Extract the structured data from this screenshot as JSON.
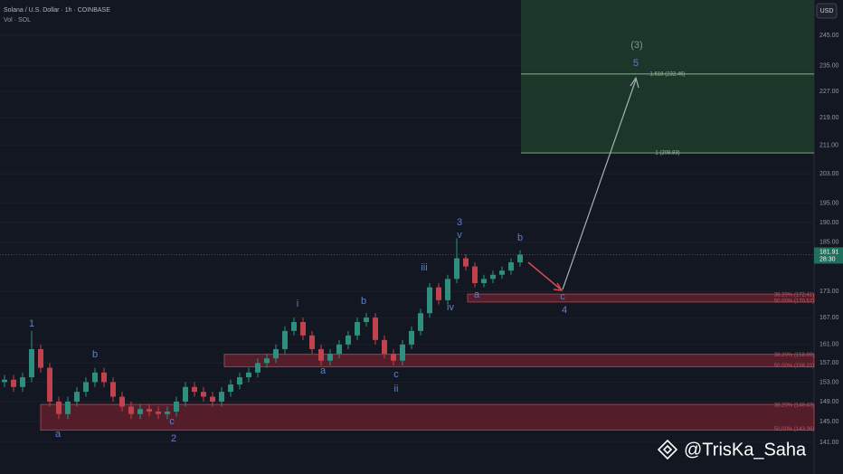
{
  "chart_data": {
    "type": "candlestick",
    "title": "Solana / U.S. Dollar · 1h · COINBASE",
    "subtitle": "Vol · SOL",
    "currency": "USD",
    "log_scale": true,
    "up_color": "#2f8f7f",
    "down_color": "#c0424c",
    "open": [
      153,
      153.5,
      152,
      154,
      160,
      156,
      149,
      146.5,
      149,
      151,
      153,
      155,
      153,
      150,
      148,
      146.5,
      147.5,
      147,
      146.5,
      147,
      149,
      152,
      151,
      150,
      149,
      151,
      152.5,
      154,
      155,
      157,
      158,
      160,
      164,
      166,
      163,
      160,
      157.5,
      159,
      161,
      163,
      166,
      167,
      162,
      159,
      157.5,
      161,
      164,
      168,
      174,
      171,
      176,
      181,
      179,
      175,
      176,
      177,
      178,
      180
    ],
    "high": [
      154.5,
      154.5,
      155,
      164,
      161,
      157,
      150,
      150,
      152,
      154,
      156,
      156,
      154,
      151,
      149,
      148.5,
      148.5,
      148,
      148,
      150,
      153,
      153,
      152,
      151,
      152,
      153.5,
      155,
      156,
      158,
      159,
      161,
      165,
      167,
      167,
      164,
      161,
      160,
      162,
      164,
      167,
      168,
      168,
      163,
      160,
      162,
      165,
      169,
      175,
      175,
      177,
      186,
      182,
      180,
      177,
      178,
      179,
      181,
      183
    ],
    "low": [
      152,
      151,
      151,
      153,
      155,
      148,
      145.5,
      145.5,
      148,
      150,
      152,
      152,
      149,
      147,
      145.5,
      145.5,
      146,
      145.5,
      145.5,
      146,
      148,
      150,
      149,
      148,
      148,
      150,
      151.5,
      153,
      154,
      156,
      157,
      159,
      163,
      162,
      159,
      156.5,
      156.5,
      158,
      160,
      162,
      165,
      161,
      158,
      156.5,
      156.5,
      160,
      163,
      167,
      170,
      170,
      175,
      178,
      174,
      174,
      175,
      176,
      177,
      179
    ],
    "close": [
      153.5,
      152,
      154,
      160,
      156,
      149,
      146.5,
      149,
      151,
      153,
      155,
      153,
      150,
      148,
      146.5,
      147.5,
      147,
      146.5,
      147,
      149,
      152,
      151,
      150,
      149,
      151,
      152.5,
      154,
      155,
      157,
      158,
      160,
      164,
      166,
      163,
      160,
      157.5,
      159,
      161,
      163,
      166,
      167,
      162,
      159,
      157.5,
      161,
      164,
      168,
      174,
      171,
      176,
      181,
      179,
      175,
      176,
      177,
      178,
      180,
      181.91
    ],
    "ylim": [
      137.4,
      257
    ],
    "yticks": [
      {
        "value": 245,
        "label": "245.00"
      },
      {
        "value": 235,
        "label": "235.00"
      },
      {
        "value": 227,
        "label": "227.00"
      },
      {
        "value": 219,
        "label": "219.00"
      },
      {
        "value": 211,
        "label": "211.00"
      },
      {
        "value": 203,
        "label": "203.00"
      },
      {
        "value": 195,
        "label": "195.00"
      },
      {
        "value": 190,
        "label": "190.00"
      },
      {
        "value": 185,
        "label": "185.00"
      },
      {
        "value": 173,
        "label": "173.00"
      },
      {
        "value": 167,
        "label": "167.00"
      },
      {
        "value": 161,
        "label": "161.00"
      },
      {
        "value": 157,
        "label": "157.00"
      },
      {
        "value": 153,
        "label": "153.00"
      },
      {
        "value": 149,
        "label": "149.00"
      },
      {
        "value": 145,
        "label": "145.00"
      },
      {
        "value": 141,
        "label": "141.00"
      }
    ],
    "last_price": 181.91,
    "countdown": "28:30",
    "target_zone": {
      "top": 232.46,
      "top_label": "1.618 (232.46)",
      "bottom": 208.83,
      "bottom_label": "1 (208.83)",
      "color": "#1f3d2c"
    },
    "fib_zones": [
      {
        "top": 172.41,
        "top_label": "38.20% (172.41)",
        "bottom": 170.57,
        "bottom_label": "50.00% (170.57)"
      },
      {
        "top": 158.89,
        "top_label": "38.20% (158.89)",
        "bottom": 156.22,
        "bottom_label": "50.00% (156.22)"
      },
      {
        "top": 148.43,
        "top_label": "38.20% (148.43)",
        "bottom": 143.36,
        "bottom_label": "50.00% (143.36)"
      }
    ],
    "annotations": [
      "(3)",
      "5",
      "1",
      "a",
      "b",
      "c",
      "2",
      "i",
      "a",
      "b",
      "c",
      "ii",
      "iii",
      "iv",
      "3",
      "v",
      "a",
      "b",
      "c",
      "4"
    ],
    "watermark": "@TrisKa_Saha"
  }
}
